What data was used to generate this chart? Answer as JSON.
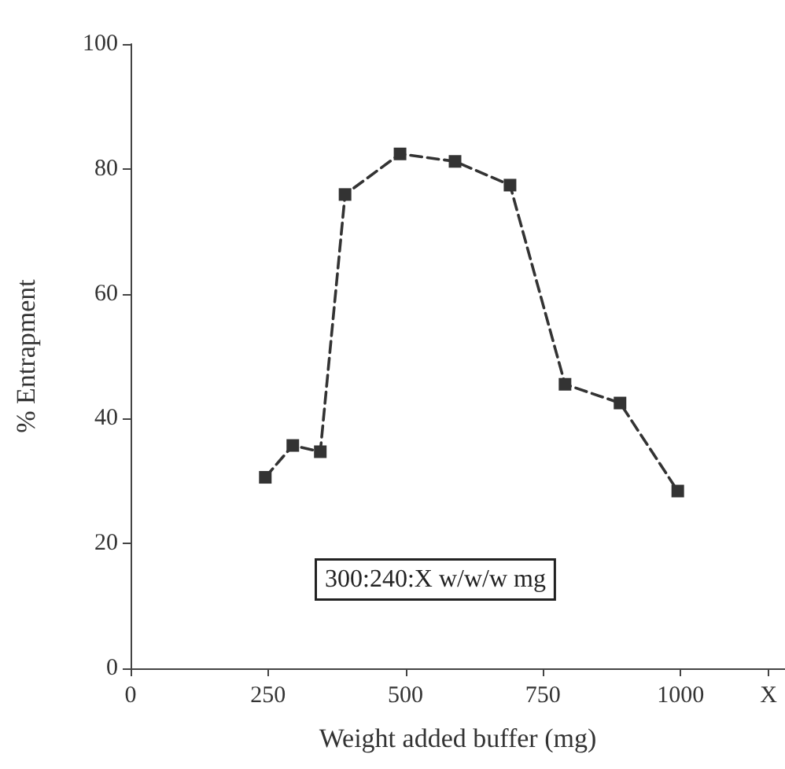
{
  "chart_data": {
    "type": "line",
    "xlabel": "Weight added buffer (mg)",
    "ylabel": "% Entrapment",
    "x": [
      245,
      295,
      345,
      390,
      490,
      590,
      690,
      790,
      890,
      995
    ],
    "series": [
      {
        "color": "#333333",
        "values": [
          30.6,
          35.7,
          34.7,
          75.9,
          82.4,
          81.2,
          77.4,
          45.5,
          42.5,
          28.4
        ]
      }
    ],
    "xlim": [
      0,
      1190
    ],
    "xticks": [
      0,
      250,
      500,
      750,
      1000,
      {
        "value": 1160,
        "label": "X"
      }
    ],
    "ylim": [
      0,
      100
    ],
    "yticks": [
      0,
      20,
      40,
      60,
      80,
      100
    ],
    "annotations": [
      "300:240:X w/w/w mg"
    ],
    "marker": "square",
    "line_style": "dashed"
  }
}
